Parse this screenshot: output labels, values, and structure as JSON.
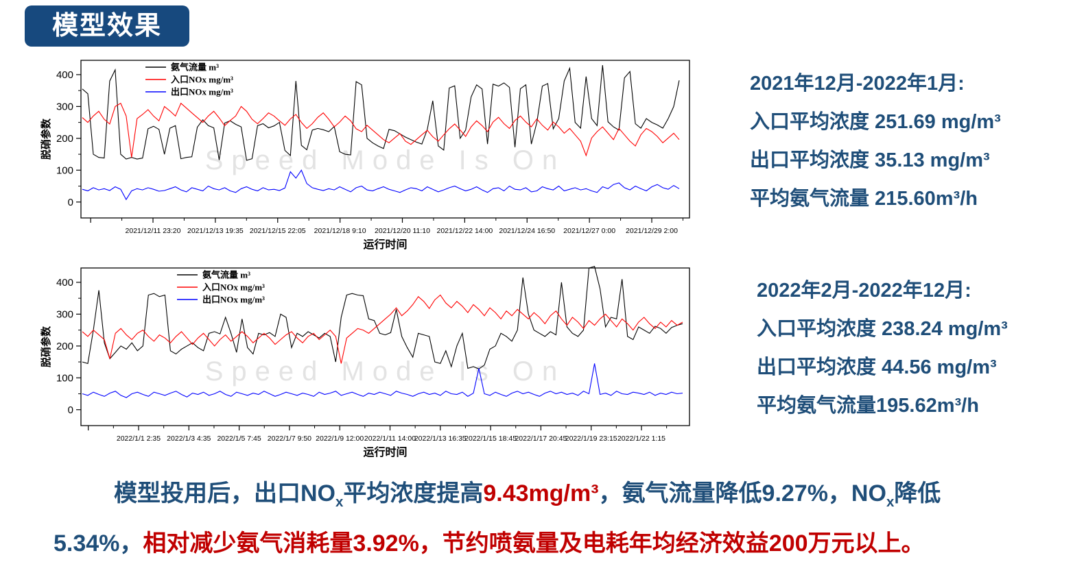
{
  "badge": {
    "title": "模型效果"
  },
  "colors": {
    "accent_blue": "#1F4E79",
    "badge_bg": "#17497E",
    "highlight_red": "#C00000",
    "series_black": "#000000",
    "series_red": "#FF0000",
    "series_blue": "#0000FF",
    "watermark_gray": "#E3E3E3"
  },
  "stats_blocks": [
    {
      "title": "2021年12月-2022年1月:",
      "lines": [
        "入口平均浓度 251.69 mg/m³",
        "出口平均浓度 35.13 mg/m³",
        "平均氨气流量 215.60m³/h"
      ]
    },
    {
      "title": "2022年2月-2022年12月:",
      "lines": [
        "入口平均浓度 238.24 mg/m³",
        "出口平均浓度 44.56 mg/m³",
        "平均氨气流量195.62m³/h"
      ]
    }
  ],
  "summary": {
    "lines": [
      {
        "segments": [
          {
            "text": "模型投用后，出口NOx平均浓度提高",
            "color": "blue"
          },
          {
            "text": "9.43mg/m³",
            "color": "red"
          },
          {
            "text": "，氨气流量降低9.27%，NOx降低",
            "color": "blue"
          }
        ]
      },
      {
        "segments": [
          {
            "text": "5.34%，",
            "color": "blue"
          },
          {
            "text": "相对减少氨气消耗量3.92%，节约喷氨量及电耗年均经济效益200万元以上。",
            "color": "red"
          }
        ]
      }
    ]
  },
  "chart_data": [
    {
      "type": "line",
      "title": "",
      "xlabel": "运行时间",
      "ylabel": "脱硝参数",
      "ylim": [
        -50,
        445
      ],
      "yticks": [
        0,
        100,
        200,
        300,
        400
      ],
      "yticks_minor": [
        50,
        150,
        250,
        350
      ],
      "grid": false,
      "legend_position": "top-left-inside",
      "watermark": "Speed Mode Is On",
      "x_tick_labels": [
        "2021/12/11 23:20",
        "2021/12/13 19:35",
        "2021/12/15 22:05",
        "2021/12/18 9:10",
        "2021/12/20 11:10",
        "2021/12/22 14:00",
        "2021/12/24 16:50",
        "2021/12/27 0:00",
        "2021/12/29 2:00"
      ],
      "series": [
        {
          "name": "氨气流量 m³",
          "color": "#000000",
          "values": [
            355,
            340,
            150,
            140,
            138,
            380,
            415,
            150,
            135,
            140,
            135,
            138,
            230,
            238,
            228,
            150,
            232,
            240,
            136,
            140,
            142,
            235,
            258,
            240,
            233,
            132,
            248,
            255,
            244,
            236,
            131,
            136,
            240,
            246,
            233,
            239,
            250,
            162,
            146,
            380,
            178,
            164,
            226,
            231,
            227,
            221,
            237,
            158,
            150,
            148,
            378,
            368,
            200,
            186,
            176,
            168,
            228,
            224,
            214,
            204,
            196,
            188,
            182,
            228,
            318,
            176,
            163,
            358,
            365,
            200,
            226,
            330,
            368,
            355,
            182,
            370,
            364,
            374,
            360,
            172,
            356,
            368,
            182,
            250,
            364,
            372,
            230,
            262,
            380,
            420,
            250,
            232,
            394,
            262,
            240,
            430,
            252,
            236,
            226,
            390,
            410,
            246,
            232,
            262,
            250,
            242,
            232,
            262,
            300,
            382
          ]
        },
        {
          "name": "入口NOx mg/m³",
          "color": "#FF0000",
          "values": [
            265,
            250,
            270,
            285,
            260,
            245,
            300,
            310,
            270,
            140,
            262,
            275,
            290,
            270,
            255,
            300,
            286,
            270,
            310,
            295,
            280,
            265,
            250,
            270,
            285,
            264,
            240,
            256,
            270,
            300,
            285,
            260,
            246,
            262,
            280,
            270,
            255,
            241,
            261,
            275,
            250,
            231,
            246,
            266,
            280,
            260,
            236,
            251,
            270,
            255,
            230,
            221,
            241,
            226,
            211,
            196,
            186,
            201,
            215,
            191,
            181,
            196,
            211,
            225,
            205,
            191,
            211,
            230,
            245,
            226,
            206,
            236,
            255,
            240,
            221,
            251,
            266,
            246,
            231,
            256,
            270,
            251,
            236,
            261,
            241,
            226,
            251,
            236,
            216,
            231,
            211,
            191,
            146,
            201,
            221,
            236,
            216,
            196,
            231,
            211,
            191,
            176,
            211,
            231,
            221,
            206,
            186,
            201,
            216,
            196
          ]
        },
        {
          "name": "出口NOx mg/m³",
          "color": "#0000FF",
          "values": [
            40,
            35,
            45,
            38,
            42,
            36,
            48,
            40,
            8,
            35,
            42,
            38,
            45,
            40,
            34,
            36,
            42,
            48,
            38,
            32,
            45,
            40,
            35,
            50,
            42,
            38,
            45,
            35,
            30,
            42,
            48,
            40,
            35,
            45,
            38,
            40,
            36,
            44,
            95,
            75,
            100,
            58,
            45,
            40,
            36,
            42,
            38,
            48,
            40,
            32,
            45,
            50,
            38,
            35,
            42,
            48,
            40,
            35,
            30,
            38,
            45,
            42,
            35,
            48,
            40,
            32,
            38,
            45,
            50,
            42,
            35,
            40,
            48,
            38,
            30,
            42,
            45,
            35,
            50,
            40,
            38,
            45,
            32,
            35,
            48,
            42,
            38,
            50,
            35,
            40,
            45,
            38,
            42,
            35,
            30,
            48,
            42,
            55,
            60,
            45,
            38,
            50,
            42,
            35,
            48,
            55,
            45,
            40,
            52,
            42
          ]
        }
      ]
    },
    {
      "type": "line",
      "title": "",
      "xlabel": "运行时间",
      "ylabel": "脱硝参数",
      "ylim": [
        -50,
        445
      ],
      "yticks": [
        0,
        100,
        200,
        300,
        400
      ],
      "yticks_minor": [
        50,
        150,
        250,
        350
      ],
      "grid": false,
      "legend_position": "top-left-inside",
      "watermark": "Speed Mode Is On",
      "x_tick_labels": [
        "2022/1/1 2:35",
        "2022/1/3 4:35",
        "2022/1/5 7:45",
        "2022/1/7 9:50",
        "2022/1/9 12:00",
        "2022/1/11 14:00",
        "2022/1/13 16:35",
        "2022/1/15 18:45",
        "2022/1/17 20:45",
        "2022/1/19 23:15",
        "2022/1/22 1:15"
      ],
      "series": [
        {
          "name": "氨气流量 m³",
          "color": "#000000",
          "values": [
            150,
            145,
            250,
            375,
            210,
            160,
            180,
            200,
            190,
            210,
            185,
            200,
            360,
            365,
            355,
            360,
            185,
            175,
            190,
            200,
            210,
            195,
            185,
            240,
            245,
            238,
            290,
            240,
            180,
            285,
            195,
            175,
            240,
            235,
            242,
            230,
            300,
            290,
            195,
            240,
            230,
            245,
            235,
            225,
            240,
            230,
            150,
            290,
            360,
            365,
            360,
            358,
            285,
            280,
            240,
            235,
            242,
            315,
            230,
            195,
            165,
            240,
            235,
            230,
            150,
            145,
            185,
            135,
            200,
            240,
            130,
            135,
            128,
            140,
            190,
            200,
            240,
            230,
            215,
            250,
            415,
            300,
            250,
            240,
            230,
            245,
            235,
            400,
            260,
            240,
            230,
            250,
            445,
            450,
            380,
            260,
            290,
            285,
            410,
            230,
            220,
            260,
            250,
            240,
            262,
            255,
            240,
            258,
            265,
            270
          ]
        },
        {
          "name": "入口NOx mg/m³",
          "color": "#FF0000",
          "values": [
            245,
            230,
            250,
            235,
            220,
            160,
            240,
            255,
            235,
            220,
            240,
            250,
            230,
            215,
            235,
            225,
            210,
            230,
            245,
            225,
            205,
            225,
            240,
            220,
            200,
            220,
            235,
            215,
            230,
            245,
            230,
            210,
            225,
            240,
            225,
            205,
            220,
            235,
            245,
            225,
            210,
            230,
            240,
            220,
            235,
            250,
            230,
            145,
            225,
            240,
            255,
            250,
            240,
            255,
            270,
            285,
            300,
            320,
            295,
            310,
            330,
            355,
            340,
            318,
            345,
            360,
            335,
            320,
            340,
            325,
            305,
            330,
            315,
            295,
            320,
            305,
            285,
            310,
            295,
            315,
            300,
            285,
            305,
            290,
            270,
            295,
            310,
            285,
            265,
            290,
            275,
            255,
            280,
            265,
            285,
            300,
            280,
            260,
            285,
            270,
            250,
            275,
            290,
            270,
            255,
            275,
            260,
            280,
            265,
            275
          ]
        },
        {
          "name": "出口NOx mg/m³",
          "color": "#0000FF",
          "values": [
            50,
            45,
            55,
            48,
            42,
            52,
            58,
            45,
            38,
            50,
            55,
            48,
            42,
            55,
            50,
            45,
            52,
            58,
            48,
            40,
            52,
            48,
            55,
            45,
            50,
            58,
            48,
            42,
            55,
            50,
            45,
            52,
            48,
            58,
            50,
            42,
            48,
            55,
            50,
            45,
            52,
            48,
            42,
            55,
            48,
            52,
            58,
            45,
            50,
            55,
            48,
            42,
            52,
            48,
            55,
            50,
            45,
            58,
            52,
            48,
            42,
            50,
            55,
            48,
            52,
            45,
            58,
            50,
            48,
            55,
            42,
            52,
            130,
            50,
            45,
            55,
            48,
            42,
            52,
            58,
            50,
            55,
            48,
            42,
            52,
            58,
            50,
            55,
            48,
            52,
            45,
            58,
            50,
            145,
            48,
            52,
            45,
            58,
            50,
            48,
            55,
            52,
            48,
            55,
            45,
            52,
            48,
            55,
            50,
            52
          ]
        }
      ]
    }
  ]
}
